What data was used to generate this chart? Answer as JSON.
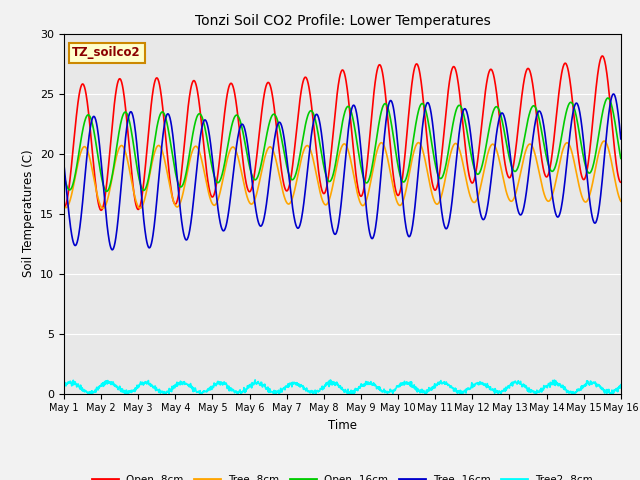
{
  "title": "Tonzi Soil CO2 Profile: Lower Temperatures",
  "xlabel": "Time",
  "ylabel": "Soil Temperatures (C)",
  "watermark": "TZ_soilco2",
  "ylim": [
    0,
    30
  ],
  "xlim": [
    0,
    15
  ],
  "yticks": [
    0,
    5,
    10,
    15,
    20,
    25,
    30
  ],
  "xtick_labels": [
    "May 1",
    "May 2",
    "May 3",
    "May 4",
    "May 5",
    "May 6",
    "May 7",
    "May 8",
    "May 9",
    "May 10",
    "May 11",
    "May 12",
    "May 13",
    "May 14",
    "May 15",
    "May 16"
  ],
  "series": {
    "Open -8cm": {
      "color": "#ff0000",
      "lw": 1.2
    },
    "Tree -8cm": {
      "color": "#ffa500",
      "lw": 1.2
    },
    "Open -16cm": {
      "color": "#00cc00",
      "lw": 1.2
    },
    "Tree -16cm": {
      "color": "#0000cc",
      "lw": 1.2
    },
    "Tree2 -8cm": {
      "color": "#00ffff",
      "lw": 1.2
    }
  },
  "bg_color": "#e8e8e8",
  "fig_color": "#f2f2f2",
  "n_days": 15,
  "points_per_day": 96
}
